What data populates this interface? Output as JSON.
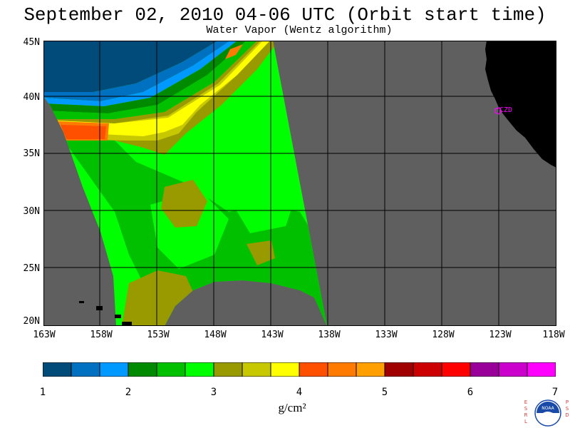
{
  "header": {
    "title": "September 02, 2010  04-06 UTC  (Orbit start time)",
    "subtitle": "Water Vapor (Wentz algorithm)"
  },
  "map": {
    "lat_labels": [
      "45N",
      "40N",
      "35N",
      "30N",
      "25N",
      "20N"
    ],
    "lon_labels": [
      "163W",
      "158W",
      "153W",
      "148W",
      "143W",
      "138W",
      "133W",
      "128W",
      "123W",
      "118W"
    ],
    "station_label": "CZD",
    "colors": {
      "no_data": "#5f5f5f",
      "land": "#000000",
      "grid": "#000000",
      "station": "#ff00ff"
    }
  },
  "colorbar": {
    "colors": [
      "#004b7a",
      "#0070c0",
      "#0099ff",
      "#008a00",
      "#00c000",
      "#00ff00",
      "#999900",
      "#c8c800",
      "#ffff00",
      "#ff5000",
      "#ff7a00",
      "#ffa000",
      "#a00000",
      "#cc0000",
      "#ff0000",
      "#990099",
      "#cc00cc",
      "#ff00ff"
    ],
    "tick_labels": [
      "1",
      "2",
      "3",
      "4",
      "5",
      "6",
      "7"
    ],
    "units": "g/cm²"
  },
  "logo": {
    "left_letters": [
      "E",
      "S",
      "R",
      "L"
    ],
    "right_letters": [
      "P",
      "S",
      "D"
    ],
    "center_text": "NOAA"
  }
}
